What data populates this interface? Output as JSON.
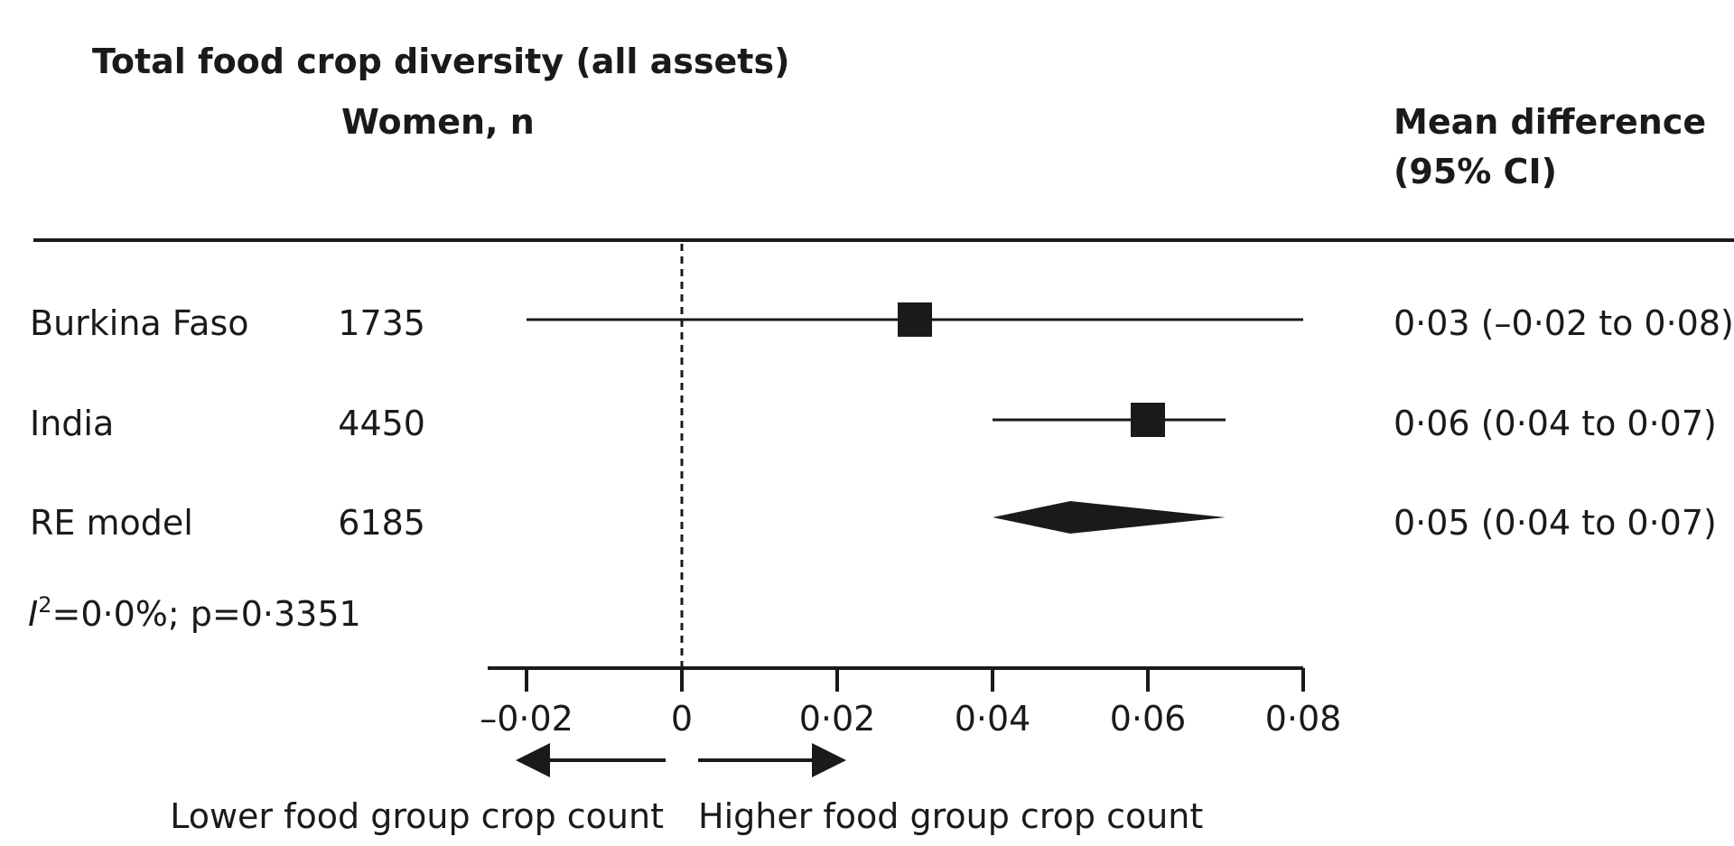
{
  "chart_data": {
    "type": "forest",
    "title": "Total food crop diversity (all assets)",
    "column_headers": {
      "n": "Women, n",
      "effect_line1": "Mean difference",
      "effect_line2": "(95% CI)"
    },
    "rows": [
      {
        "label": "Burkina Faso",
        "n": "1735",
        "estimate": 0.03,
        "lower": -0.02,
        "upper": 0.08,
        "text": "0·03 (–0·02 to 0·08)",
        "marker": "square"
      },
      {
        "label": "India",
        "n": "4450",
        "estimate": 0.06,
        "lower": 0.04,
        "upper": 0.07,
        "text": "0·06 (0·04 to 0·07)",
        "marker": "square"
      },
      {
        "label": "RE model",
        "n": "6185",
        "estimate": 0.05,
        "lower": 0.04,
        "upper": 0.07,
        "text": "0·05 (0·04 to 0·07)",
        "marker": "diamond"
      }
    ],
    "heterogeneity": {
      "symbol": "I",
      "superscript": "2",
      "rest": "=0·0%; p=0·3351"
    },
    "xlim": [
      -0.025,
      0.08
    ],
    "x_ticks": [
      {
        "value": -0.02,
        "label": "–0·02"
      },
      {
        "value": 0,
        "label": "0"
      },
      {
        "value": 0.02,
        "label": "0·02"
      },
      {
        "value": 0.04,
        "label": "0·04"
      },
      {
        "value": 0.06,
        "label": "0·06"
      },
      {
        "value": 0.08,
        "label": "0·08"
      }
    ],
    "reference_line": 0,
    "direction_labels": {
      "left": "Lower food group crop count",
      "right": "Higher food group crop count"
    },
    "colors": {
      "ink": "#1a1a1a",
      "background": "#ffffff"
    }
  }
}
